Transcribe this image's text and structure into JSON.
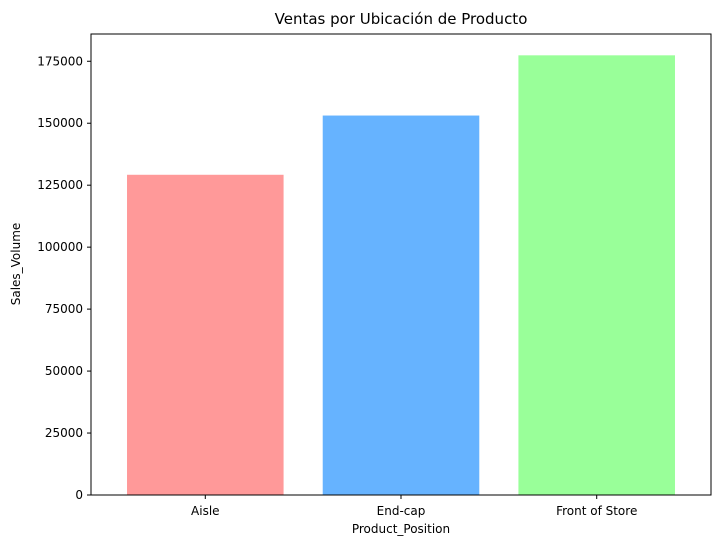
{
  "chart_data": {
    "type": "bar",
    "title": "Ventas por Ubicación de Producto",
    "xlabel": "Product_Position",
    "ylabel": "Sales_Volume",
    "categories": [
      "Aisle",
      "End-cap",
      "Front of Store"
    ],
    "values": [
      129200,
      153100,
      177400
    ],
    "colors": [
      "#ff9999",
      "#66b3ff",
      "#99ff99"
    ],
    "ylim": [
      0,
      186000
    ],
    "yticks": [
      0,
      25000,
      50000,
      75000,
      100000,
      125000,
      150000,
      175000
    ],
    "grid": false,
    "legend": "none"
  }
}
